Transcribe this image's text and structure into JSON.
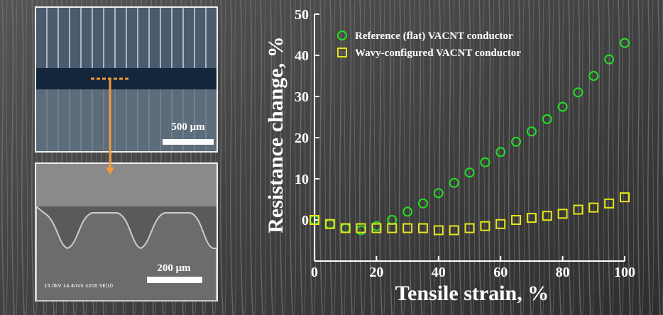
{
  "chart_data": {
    "type": "scatter",
    "xlabel": "Tensile strain, %",
    "ylabel": "Resistance change, %",
    "x": [
      0,
      5,
      10,
      15,
      20,
      25,
      30,
      35,
      40,
      45,
      50,
      55,
      60,
      65,
      70,
      75,
      80,
      85,
      90,
      95,
      100
    ],
    "series": [
      {
        "name": "Reference (flat) VACNT conductor",
        "color": "#22e022",
        "marker": "circle",
        "values": [
          0,
          -1,
          -2,
          -2.5,
          -1.5,
          0,
          2,
          4,
          6.5,
          9,
          11.5,
          14,
          16.5,
          19,
          21.5,
          24.5,
          27.5,
          31,
          35,
          39,
          43
        ]
      },
      {
        "name": "Wavy-configured VACNT conductor",
        "color": "#e6e619",
        "marker": "square",
        "values": [
          0,
          -1,
          -2,
          -2,
          -2,
          -2,
          -2,
          -2,
          -2.5,
          -2.5,
          -2,
          -1.5,
          -1,
          0,
          0.5,
          1,
          1.5,
          2.5,
          3,
          4,
          5.5
        ]
      }
    ],
    "xlim": [
      0,
      100
    ],
    "xticks": [
      0,
      20,
      40,
      60,
      80,
      100
    ],
    "ylim": [
      -10,
      50
    ],
    "yticks": [
      0,
      10,
      20,
      30,
      40,
      50
    ],
    "legend": "upper left"
  },
  "images": {
    "top_scale": "500 μm",
    "bottom_scale": "200 μm",
    "bottom_info": "15.0kV 14.4mm x200 SE(U)"
  }
}
